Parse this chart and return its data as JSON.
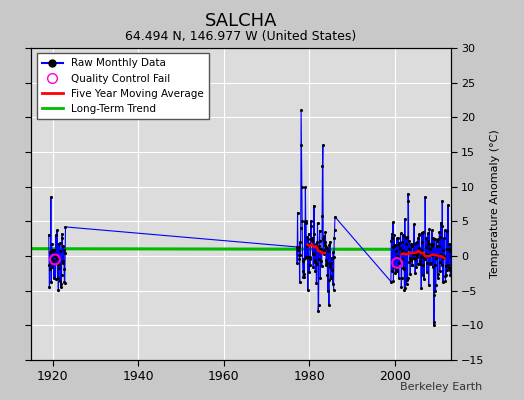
{
  "title": "SALCHA",
  "subtitle": "64.494 N, 146.977 W (United States)",
  "ylabel": "Temperature Anomaly (°C)",
  "credit": "Berkeley Earth",
  "ylim": [
    -15,
    30
  ],
  "yticks": [
    -15,
    -10,
    -5,
    0,
    5,
    10,
    15,
    20,
    25,
    30
  ],
  "xlim": [
    1915,
    2013
  ],
  "xticks": [
    1920,
    1940,
    1960,
    1980,
    2000
  ],
  "line_color": "#0000FF",
  "dot_color": "#000000",
  "qc_color": "#FF00CC",
  "moving_avg_color": "#FF0000",
  "trend_color": "#00BB00",
  "fig_bg_color": "#C8C8C8",
  "plot_bg_color": "#DCDCDC",
  "grid_color": "#FFFFFF",
  "trend_y": 1.0,
  "trend_slope": -0.001
}
